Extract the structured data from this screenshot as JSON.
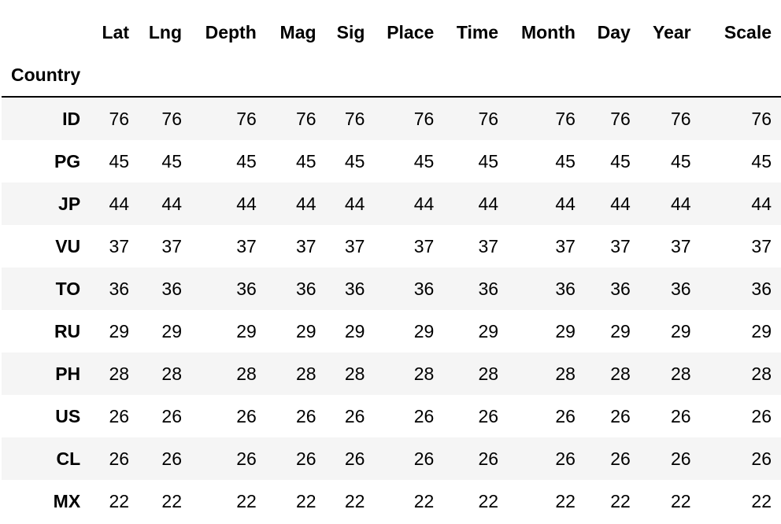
{
  "table": {
    "index_name": "Country",
    "columns": [
      "Lat",
      "Lng",
      "Depth",
      "Mag",
      "Sig",
      "Place",
      "Time",
      "Month",
      "Day",
      "Year",
      "Scale"
    ],
    "rows": [
      {
        "index": "ID",
        "values": [
          "76",
          "76",
          "76",
          "76",
          "76",
          "76",
          "76",
          "76",
          "76",
          "76",
          "76"
        ]
      },
      {
        "index": "PG",
        "values": [
          "45",
          "45",
          "45",
          "45",
          "45",
          "45",
          "45",
          "45",
          "45",
          "45",
          "45"
        ]
      },
      {
        "index": "JP",
        "values": [
          "44",
          "44",
          "44",
          "44",
          "44",
          "44",
          "44",
          "44",
          "44",
          "44",
          "44"
        ]
      },
      {
        "index": "VU",
        "values": [
          "37",
          "37",
          "37",
          "37",
          "37",
          "37",
          "37",
          "37",
          "37",
          "37",
          "37"
        ]
      },
      {
        "index": "TO",
        "values": [
          "36",
          "36",
          "36",
          "36",
          "36",
          "36",
          "36",
          "36",
          "36",
          "36",
          "36"
        ]
      },
      {
        "index": "RU",
        "values": [
          "29",
          "29",
          "29",
          "29",
          "29",
          "29",
          "29",
          "29",
          "29",
          "29",
          "29"
        ]
      },
      {
        "index": "PH",
        "values": [
          "28",
          "28",
          "28",
          "28",
          "28",
          "28",
          "28",
          "28",
          "28",
          "28",
          "28"
        ]
      },
      {
        "index": "US",
        "values": [
          "26",
          "26",
          "26",
          "26",
          "26",
          "26",
          "26",
          "26",
          "26",
          "26",
          "26"
        ]
      },
      {
        "index": "CL",
        "values": [
          "26",
          "26",
          "26",
          "26",
          "26",
          "26",
          "26",
          "26",
          "26",
          "26",
          "26"
        ]
      },
      {
        "index": "MX",
        "values": [
          "22",
          "22",
          "22",
          "22",
          "22",
          "22",
          "22",
          "22",
          "22",
          "22",
          "22"
        ]
      }
    ]
  }
}
